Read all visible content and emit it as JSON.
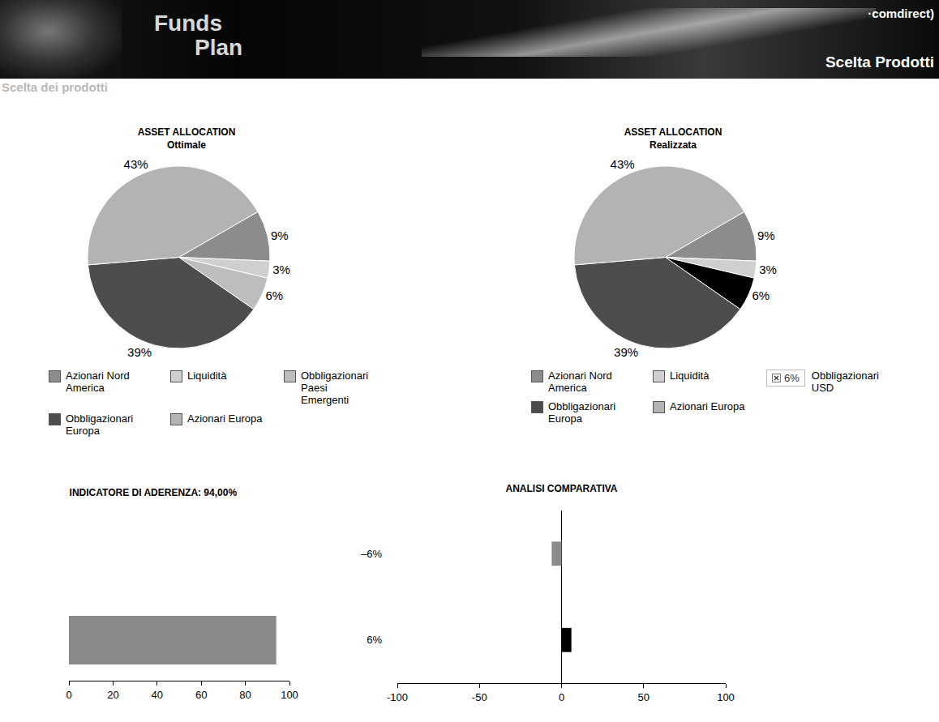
{
  "header": {
    "title_lines": [
      "Funds",
      "Plan"
    ],
    "brand": "·comdirect)",
    "section": "Scelta Prodotti"
  },
  "subtitle": "Scelta dei prodotti",
  "chart_data": [
    {
      "type": "pie",
      "title": "ASSET ALLOCATION",
      "subtitle": "Ottimale",
      "categories": [
        "Azionari Nord America",
        "Liquidità",
        "Obbligazionari Paesi Emergenti",
        "Obbligazionari Europa",
        "Azionari Europa"
      ],
      "values": [
        9,
        3,
        6,
        39,
        43
      ],
      "value_labels": [
        "9%",
        "3%",
        "6%",
        "39%",
        "43%"
      ],
      "colors": [
        "#8c8c8c",
        "#cfcfcf",
        "#bdbdbd",
        "#4d4d4d",
        "#b3b3b3"
      ],
      "data_labels": true,
      "legend": "bottom"
    },
    {
      "type": "pie",
      "title": "ASSET ALLOCATION",
      "subtitle": "Realizzata",
      "categories": [
        "Azionari Nord America",
        "Liquidità",
        "Obbligazionari USD",
        "Obbligazionari Europa",
        "Azionari Europa"
      ],
      "values": [
        9,
        3,
        6,
        39,
        43
      ],
      "value_labels": [
        "9%",
        "3%",
        "6%",
        "39%",
        "43%"
      ],
      "colors": [
        "#8c8c8c",
        "#cfcfcf",
        "#000000",
        "#4d4d4d",
        "#b3b3b3"
      ],
      "legend_notes": [
        null,
        null,
        "6%",
        null,
        null
      ],
      "data_labels": true,
      "legend": "bottom"
    },
    {
      "type": "bar",
      "title": "INDICATORE DI ADERENZA: 94,00%",
      "orientation": "horizontal",
      "categories": [
        null
      ],
      "values": [
        94
      ],
      "color": "#8a8a8a",
      "xlim": [
        0,
        100
      ],
      "xticks": [
        0,
        20,
        40,
        60,
        80,
        100
      ],
      "tick_labels": "x",
      "grid": false
    },
    {
      "type": "bar",
      "title": "ANALISI COMPARATIVA",
      "orientation": "horizontal",
      "categories": [
        "–6%",
        "6%"
      ],
      "values": [
        -6,
        6
      ],
      "colors": [
        "#8a8a8a",
        "#000000"
      ],
      "xlim": [
        -100,
        100
      ],
      "xticks": [
        -100,
        -50,
        0,
        50,
        100
      ],
      "grid": false
    }
  ]
}
